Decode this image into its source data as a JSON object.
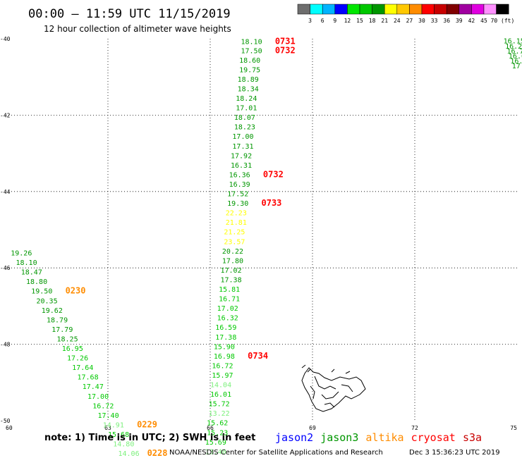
{
  "title": "00:00 – 11:59 UTC 11/15/2019",
  "subtitle": "12 hour collection of altimeter wave heights",
  "colorbar": {
    "labels": [
      "3",
      "6",
      "9",
      "12",
      "15",
      "18",
      "21",
      "24",
      "27",
      "30",
      "33",
      "36",
      "39",
      "42",
      "45",
      "70 (ft)"
    ],
    "colors": [
      "#6e6e6e",
      "#00ffff",
      "#00b4ff",
      "#0000ff",
      "#00e600",
      "#00c800",
      "#009600",
      "#ffff00",
      "#ffc800",
      "#ff8c00",
      "#ff0000",
      "#c80000",
      "#800000",
      "#a000a0",
      "#e000e0",
      "#ff90ff",
      "#000000"
    ]
  },
  "legend": [
    {
      "name": "jason2",
      "color": "#0000ff"
    },
    {
      "name": "jason3",
      "color": "#009600"
    },
    {
      "name": "altika",
      "color": "#ff8c00"
    },
    {
      "name": "cryosat",
      "color": "#ff0000"
    },
    {
      "name": "s3a",
      "color": "#c80000"
    }
  ],
  "note": "note: 1) Time is in UTC; 2) SWH is in feet",
  "credit": "NOAA/NESDIS Center for Satellite Applications and Research",
  "generated": "Dec  3 15:36:23 UTC 2019",
  "chart_data": {
    "type": "scatter",
    "xlim": [
      60,
      75
    ],
    "ylim": [
      -50,
      -40
    ],
    "x_ticks": [
      "60",
      "63",
      "66",
      "69",
      "72",
      "75"
    ],
    "y_ticks": [
      "-40",
      "-42",
      "-44",
      "-46",
      "-48",
      "-50"
    ],
    "grid": true,
    "series": [
      {
        "name": "jason3",
        "points": [
          {
            "x": 66.9,
            "y": -40.06,
            "v": "18.10",
            "color": "#009600"
          },
          {
            "x": 66.9,
            "y": -40.3,
            "v": "17.50",
            "color": "#009600"
          },
          {
            "x": 66.85,
            "y": -40.55,
            "v": "18.60",
            "color": "#009600"
          },
          {
            "x": 66.85,
            "y": -40.8,
            "v": "19.75",
            "color": "#009600"
          },
          {
            "x": 66.8,
            "y": -41.05,
            "v": "18.89",
            "color": "#009600"
          },
          {
            "x": 66.8,
            "y": -41.3,
            "v": "18.34",
            "color": "#009600"
          },
          {
            "x": 66.75,
            "y": -41.55,
            "v": "18.24",
            "color": "#009600"
          },
          {
            "x": 66.75,
            "y": -41.8,
            "v": "17.01",
            "color": "#009600"
          },
          {
            "x": 66.7,
            "y": -42.05,
            "v": "18.07",
            "color": "#009600"
          },
          {
            "x": 66.7,
            "y": -42.3,
            "v": "18.23",
            "color": "#009600"
          },
          {
            "x": 66.65,
            "y": -42.55,
            "v": "17.00",
            "color": "#009600"
          },
          {
            "x": 66.65,
            "y": -42.8,
            "v": "17.31",
            "color": "#009600"
          },
          {
            "x": 66.6,
            "y": -43.05,
            "v": "17.92",
            "color": "#009600"
          },
          {
            "x": 66.6,
            "y": -43.3,
            "v": "16.31",
            "color": "#009600"
          },
          {
            "x": 66.55,
            "y": -43.55,
            "v": "16.36",
            "color": "#009600"
          },
          {
            "x": 66.55,
            "y": -43.8,
            "v": "16.39",
            "color": "#009600"
          },
          {
            "x": 66.5,
            "y": -44.05,
            "v": "17.52",
            "color": "#009600"
          },
          {
            "x": 66.5,
            "y": -44.3,
            "v": "19.30",
            "color": "#009600"
          },
          {
            "x": 66.45,
            "y": -44.55,
            "v": "22.23",
            "color": "#ffff00"
          },
          {
            "x": 66.45,
            "y": -44.8,
            "v": "21.81",
            "color": "#ffff00"
          },
          {
            "x": 66.4,
            "y": -45.05,
            "v": "21.25",
            "color": "#ffff00"
          },
          {
            "x": 66.4,
            "y": -45.3,
            "v": "23.57",
            "color": "#ffff00"
          },
          {
            "x": 66.35,
            "y": -45.55,
            "v": "20.22",
            "color": "#009600"
          },
          {
            "x": 66.35,
            "y": -45.8,
            "v": "17.80",
            "color": "#009600"
          },
          {
            "x": 66.3,
            "y": -46.05,
            "v": "17.02",
            "color": "#009600"
          },
          {
            "x": 66.3,
            "y": -46.3,
            "v": "17.38",
            "color": "#009600"
          },
          {
            "x": 66.25,
            "y": -46.55,
            "v": "15.81",
            "color": "#00c800"
          },
          {
            "x": 66.25,
            "y": -46.8,
            "v": "16.71",
            "color": "#00c800"
          },
          {
            "x": 66.2,
            "y": -47.05,
            "v": "17.02",
            "color": "#00c800"
          },
          {
            "x": 66.2,
            "y": -47.3,
            "v": "16.32",
            "color": "#00c800"
          },
          {
            "x": 66.15,
            "y": -47.55,
            "v": "16.59",
            "color": "#00c800"
          },
          {
            "x": 66.15,
            "y": -47.8,
            "v": "17.38",
            "color": "#00c800"
          },
          {
            "x": 66.1,
            "y": -48.05,
            "v": "15.90",
            "color": "#00c800"
          },
          {
            "x": 66.1,
            "y": -48.3,
            "v": "16.98",
            "color": "#00c800"
          },
          {
            "x": 66.05,
            "y": -48.55,
            "v": "16.72",
            "color": "#00c800"
          },
          {
            "x": 66.05,
            "y": -48.8,
            "v": "15.97",
            "color": "#00c800"
          },
          {
            "x": 66.0,
            "y": -49.05,
            "v": "14.04",
            "color": "#7cf07c"
          },
          {
            "x": 66.0,
            "y": -49.3,
            "v": "16.01",
            "color": "#00c800"
          },
          {
            "x": 65.95,
            "y": -49.55,
            "v": "15.72",
            "color": "#00c800"
          },
          {
            "x": 65.95,
            "y": -49.8,
            "v": "13.22",
            "color": "#7cf07c"
          },
          {
            "x": 65.9,
            "y": -50.05,
            "v": "15.62",
            "color": "#00c800"
          },
          {
            "x": 65.9,
            "y": -50.3,
            "v": "15.23",
            "color": "#00c800"
          },
          {
            "x": 65.85,
            "y": -50.55,
            "v": "15.69",
            "color": "#00c800"
          },
          {
            "x": 65.85,
            "y": -50.8,
            "v": "13.40",
            "color": "#7cf07c"
          }
        ]
      },
      {
        "name": "altika",
        "points": [
          {
            "x": 60.15,
            "y": -45.6,
            "v": "19.26",
            "color": "#009600"
          },
          {
            "x": 60.3,
            "y": -45.85,
            "v": "18.10",
            "color": "#009600"
          },
          {
            "x": 60.45,
            "y": -46.1,
            "v": "18.47",
            "color": "#009600"
          },
          {
            "x": 60.6,
            "y": -46.35,
            "v": "18.80",
            "color": "#009600"
          },
          {
            "x": 60.75,
            "y": -46.6,
            "v": "19.50",
            "color": "#009600"
          },
          {
            "x": 60.9,
            "y": -46.85,
            "v": "20.35",
            "color": "#009600"
          },
          {
            "x": 61.05,
            "y": -47.1,
            "v": "19.62",
            "color": "#009600"
          },
          {
            "x": 61.2,
            "y": -47.35,
            "v": "18.79",
            "color": "#009600"
          },
          {
            "x": 61.35,
            "y": -47.6,
            "v": "17.79",
            "color": "#009600"
          },
          {
            "x": 61.5,
            "y": -47.85,
            "v": "18.25",
            "color": "#009600"
          },
          {
            "x": 61.65,
            "y": -48.1,
            "v": "16.95",
            "color": "#00c800"
          },
          {
            "x": 61.8,
            "y": -48.35,
            "v": "17.26",
            "color": "#00c800"
          },
          {
            "x": 61.95,
            "y": -48.6,
            "v": "17.64",
            "color": "#00c800"
          },
          {
            "x": 62.1,
            "y": -48.85,
            "v": "17.68",
            "color": "#00c800"
          },
          {
            "x": 62.25,
            "y": -49.1,
            "v": "17.47",
            "color": "#00c800"
          },
          {
            "x": 62.4,
            "y": -49.35,
            "v": "17.00",
            "color": "#00c800"
          },
          {
            "x": 62.55,
            "y": -49.6,
            "v": "16.72",
            "color": "#00c800"
          },
          {
            "x": 62.7,
            "y": -49.85,
            "v": "17.40",
            "color": "#00c800"
          },
          {
            "x": 62.85,
            "y": -50.1,
            "v": "14.91",
            "color": "#7cf07c"
          },
          {
            "x": 63.0,
            "y": -50.35,
            "v": "15.68",
            "color": "#00c800"
          },
          {
            "x": 63.15,
            "y": -50.6,
            "v": "14.80",
            "color": "#7cf07c"
          },
          {
            "x": 63.3,
            "y": -50.85,
            "v": "14.06",
            "color": "#7cf07c"
          }
        ]
      },
      {
        "name": "jason3-ne",
        "points": [
          {
            "x": 74.6,
            "y": -40.05,
            "v": "16.15",
            "color": "#009600"
          },
          {
            "x": 74.65,
            "y": -40.18,
            "v": "16.25",
            "color": "#009600"
          },
          {
            "x": 74.7,
            "y": -40.31,
            "v": "16.74",
            "color": "#009600"
          },
          {
            "x": 74.75,
            "y": -40.44,
            "v": "16.00",
            "color": "#009600"
          },
          {
            "x": 74.8,
            "y": -40.57,
            "v": "16.3",
            "color": "#009600"
          },
          {
            "x": 74.85,
            "y": -40.7,
            "v": "17",
            "color": "#009600"
          }
        ]
      }
    ],
    "time_labels": [
      {
        "x": 67.9,
        "y": -40.06,
        "text": "0731",
        "color": "#ff0000"
      },
      {
        "x": 67.9,
        "y": -40.3,
        "text": "0732",
        "color": "#ff0000"
      },
      {
        "x": 67.55,
        "y": -43.55,
        "text": "0732",
        "color": "#ff0000"
      },
      {
        "x": 67.5,
        "y": -44.3,
        "text": "0733",
        "color": "#ff0000"
      },
      {
        "x": 67.1,
        "y": -48.3,
        "text": "0734",
        "color": "#ff0000"
      },
      {
        "x": 61.75,
        "y": -46.6,
        "text": "0230",
        "color": "#ff8c00"
      },
      {
        "x": 63.85,
        "y": -50.1,
        "text": "0229",
        "color": "#ff8c00"
      },
      {
        "x": 64.15,
        "y": -50.85,
        "text": "0228",
        "color": "#ff8c00"
      }
    ]
  }
}
